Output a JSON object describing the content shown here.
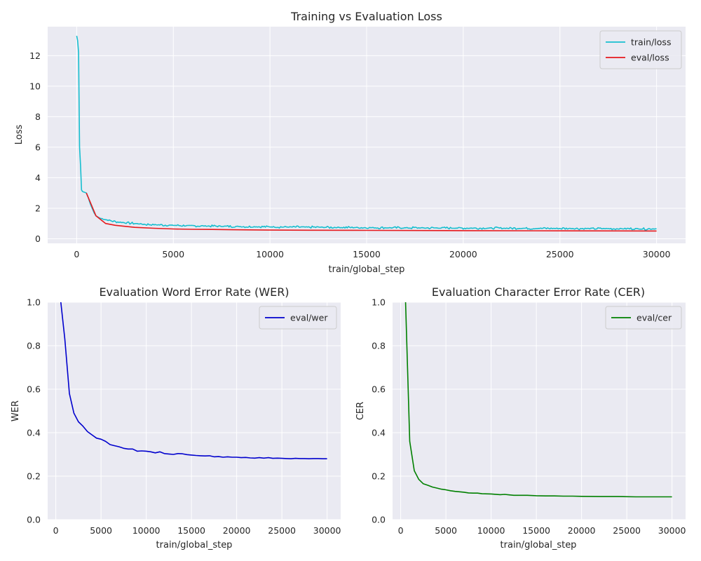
{
  "chart_data": [
    {
      "type": "line",
      "title": "Training vs Evaluation Loss",
      "xlabel": "train/global_step",
      "ylabel": "Loss",
      "xlim": [
        -1500,
        31500
      ],
      "ylim": [
        -0.3,
        13.9
      ],
      "xticks": [
        0,
        5000,
        10000,
        15000,
        20000,
        25000,
        30000
      ],
      "yticks": [
        0,
        2,
        4,
        6,
        8,
        10,
        12
      ],
      "grid": true,
      "legend": "top-right",
      "background": "#eaeaf2",
      "series": [
        {
          "name": "train/loss",
          "color": "#17becf",
          "noise": 0.05,
          "x": [
            0,
            50,
            100,
            120,
            150,
            200,
            250,
            300,
            400,
            500,
            600,
            700,
            800,
            900,
            1000,
            1200,
            1500,
            2000,
            2500,
            3000,
            3500,
            4000,
            5000,
            6000,
            7000,
            8000,
            9000,
            10000,
            12000,
            14000,
            16000,
            18000,
            20000,
            22000,
            24000,
            26000,
            28000,
            30000
          ],
          "y": [
            13.3,
            13.0,
            12.2,
            9.5,
            6.0,
            4.8,
            3.2,
            3.1,
            3.05,
            3.0,
            2.7,
            2.3,
            2.0,
            1.7,
            1.5,
            1.35,
            1.25,
            1.12,
            1.05,
            1.0,
            0.95,
            0.92,
            0.88,
            0.85,
            0.83,
            0.81,
            0.79,
            0.78,
            0.76,
            0.74,
            0.72,
            0.71,
            0.7,
            0.69,
            0.68,
            0.67,
            0.66,
            0.65
          ]
        },
        {
          "name": "eval/loss",
          "color": "#e6191d",
          "noise": 0,
          "x": [
            500,
            700,
            1000,
            1500,
            2000,
            3000,
            4000,
            5000,
            6000,
            7000,
            8000,
            10000,
            12000,
            15000,
            20000,
            25000,
            30000
          ],
          "y": [
            3.0,
            2.4,
            1.5,
            1.0,
            0.88,
            0.75,
            0.69,
            0.64,
            0.62,
            0.61,
            0.59,
            0.57,
            0.56,
            0.55,
            0.53,
            0.52,
            0.51
          ]
        }
      ]
    },
    {
      "type": "line",
      "title": "Evaluation Word Error Rate (WER)",
      "xlabel": "train/global_step",
      "ylabel": "WER",
      "xlim": [
        -900,
        31500
      ],
      "ylim": [
        0.0,
        1.0
      ],
      "xticks": [
        0,
        5000,
        10000,
        15000,
        20000,
        25000,
        30000
      ],
      "yticks": [
        0.0,
        0.2,
        0.4,
        0.6,
        0.8,
        1.0
      ],
      "ytick_labels": [
        "0.0",
        "0.2",
        "0.4",
        "0.6",
        "0.8",
        "1.0"
      ],
      "grid": true,
      "legend": "top-right",
      "background": "#eaeaf2",
      "series": [
        {
          "name": "eval/wer",
          "color": "#0000cd",
          "x": [
            500,
            1000,
            1500,
            2000,
            2500,
            3000,
            3500,
            4000,
            4500,
            5000,
            5500,
            6000,
            6500,
            7000,
            7500,
            8000,
            8500,
            9000,
            9500,
            10000,
            10500,
            11000,
            11500,
            12000,
            12500,
            13000,
            13500,
            14000,
            14500,
            15000,
            15500,
            16000,
            16500,
            17000,
            17500,
            18000,
            18500,
            19000,
            19500,
            20000,
            20500,
            21000,
            21500,
            22000,
            22500,
            23000,
            23500,
            24000,
            24500,
            25000,
            25500,
            26000,
            26500,
            27000,
            27500,
            28000,
            28500,
            29000,
            29500,
            30000
          ],
          "y": [
            1.02,
            0.83,
            0.58,
            0.49,
            0.45,
            0.43,
            0.405,
            0.39,
            0.375,
            0.37,
            0.36,
            0.345,
            0.34,
            0.335,
            0.328,
            0.325,
            0.325,
            0.315,
            0.316,
            0.315,
            0.312,
            0.307,
            0.312,
            0.304,
            0.302,
            0.3,
            0.304,
            0.303,
            0.299,
            0.297,
            0.295,
            0.294,
            0.293,
            0.294,
            0.289,
            0.29,
            0.287,
            0.289,
            0.287,
            0.287,
            0.285,
            0.286,
            0.284,
            0.283,
            0.285,
            0.283,
            0.285,
            0.282,
            0.283,
            0.282,
            0.281,
            0.28,
            0.282,
            0.281,
            0.281,
            0.28,
            0.281,
            0.281,
            0.28,
            0.28
          ]
        }
      ]
    },
    {
      "type": "line",
      "title": "Evaluation Character Error Rate (CER)",
      "xlabel": "train/global_step",
      "ylabel": "CER",
      "xlim": [
        -900,
        31500
      ],
      "ylim": [
        0.0,
        1.0
      ],
      "xticks": [
        0,
        5000,
        10000,
        15000,
        20000,
        25000,
        30000
      ],
      "yticks": [
        0.0,
        0.2,
        0.4,
        0.6,
        0.8,
        1.0
      ],
      "ytick_labels": [
        "0.0",
        "0.2",
        "0.4",
        "0.6",
        "0.8",
        "1.0"
      ],
      "grid": true,
      "legend": "top-right",
      "background": "#eaeaf2",
      "series": [
        {
          "name": "eval/cer",
          "color": "#008000",
          "x": [
            500,
            1000,
            1500,
            2000,
            2500,
            3000,
            3500,
            4000,
            4500,
            5000,
            5500,
            6000,
            6500,
            7000,
            7500,
            8000,
            8500,
            9000,
            10000,
            11000,
            11500,
            12000,
            12500,
            13000,
            14000,
            15000,
            16000,
            17000,
            18000,
            19000,
            20000,
            22000,
            24000,
            26000,
            28000,
            30000
          ],
          "y": [
            1.05,
            0.36,
            0.225,
            0.185,
            0.165,
            0.158,
            0.15,
            0.145,
            0.14,
            0.137,
            0.133,
            0.13,
            0.128,
            0.126,
            0.123,
            0.122,
            0.122,
            0.119,
            0.118,
            0.115,
            0.116,
            0.114,
            0.112,
            0.112,
            0.112,
            0.11,
            0.109,
            0.109,
            0.108,
            0.108,
            0.107,
            0.106,
            0.106,
            0.105,
            0.105,
            0.105
          ]
        }
      ]
    }
  ]
}
